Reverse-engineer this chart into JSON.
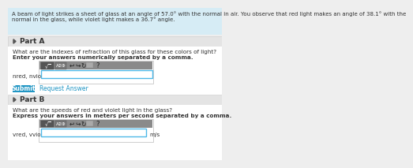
{
  "header_text_1": "A beam of light strikes a sheet of glass at an angle of 57.0° with the normal in air. You observe that red light makes an angle of 38.1° with the",
  "header_text_2": "normal in the glass, while violet light makes a 36.7° angle.",
  "header_bg": "#d6ecf5",
  "body_bg": "#eeeeee",
  "white_bg": "#ffffff",
  "part_a_label": "Part A",
  "part_a_q1": "What are the indexes of refraction of this glass for these colors of light?",
  "part_a_q2": "Enter your answers numerically separated by a comma.",
  "part_a_answer_label": "nred, nviolet =",
  "submit_text": "Submit",
  "submit_bg": "#2196c4",
  "request_text": "Request Answer",
  "request_color": "#2196c4",
  "part_b_label": "Part B",
  "part_b_q1": "What are the speeds of red and violet light in the glass?",
  "part_b_q2": "Express your answers in meters per second separated by a comma.",
  "part_b_answer_label": "vred, vviolet =",
  "unit_label": "m/s",
  "input_border": "#4db8e8",
  "part_header_bg": "#e4e4e4",
  "triangle_color": "#555555",
  "separator_color": "#cccccc",
  "text_color": "#333333",
  "toolbar_bg": "#8a8a8a",
  "btn_dark": "#555555",
  "btn_mid": "#777777",
  "icon_bg": "#aaaaaa",
  "question_mark": "?"
}
